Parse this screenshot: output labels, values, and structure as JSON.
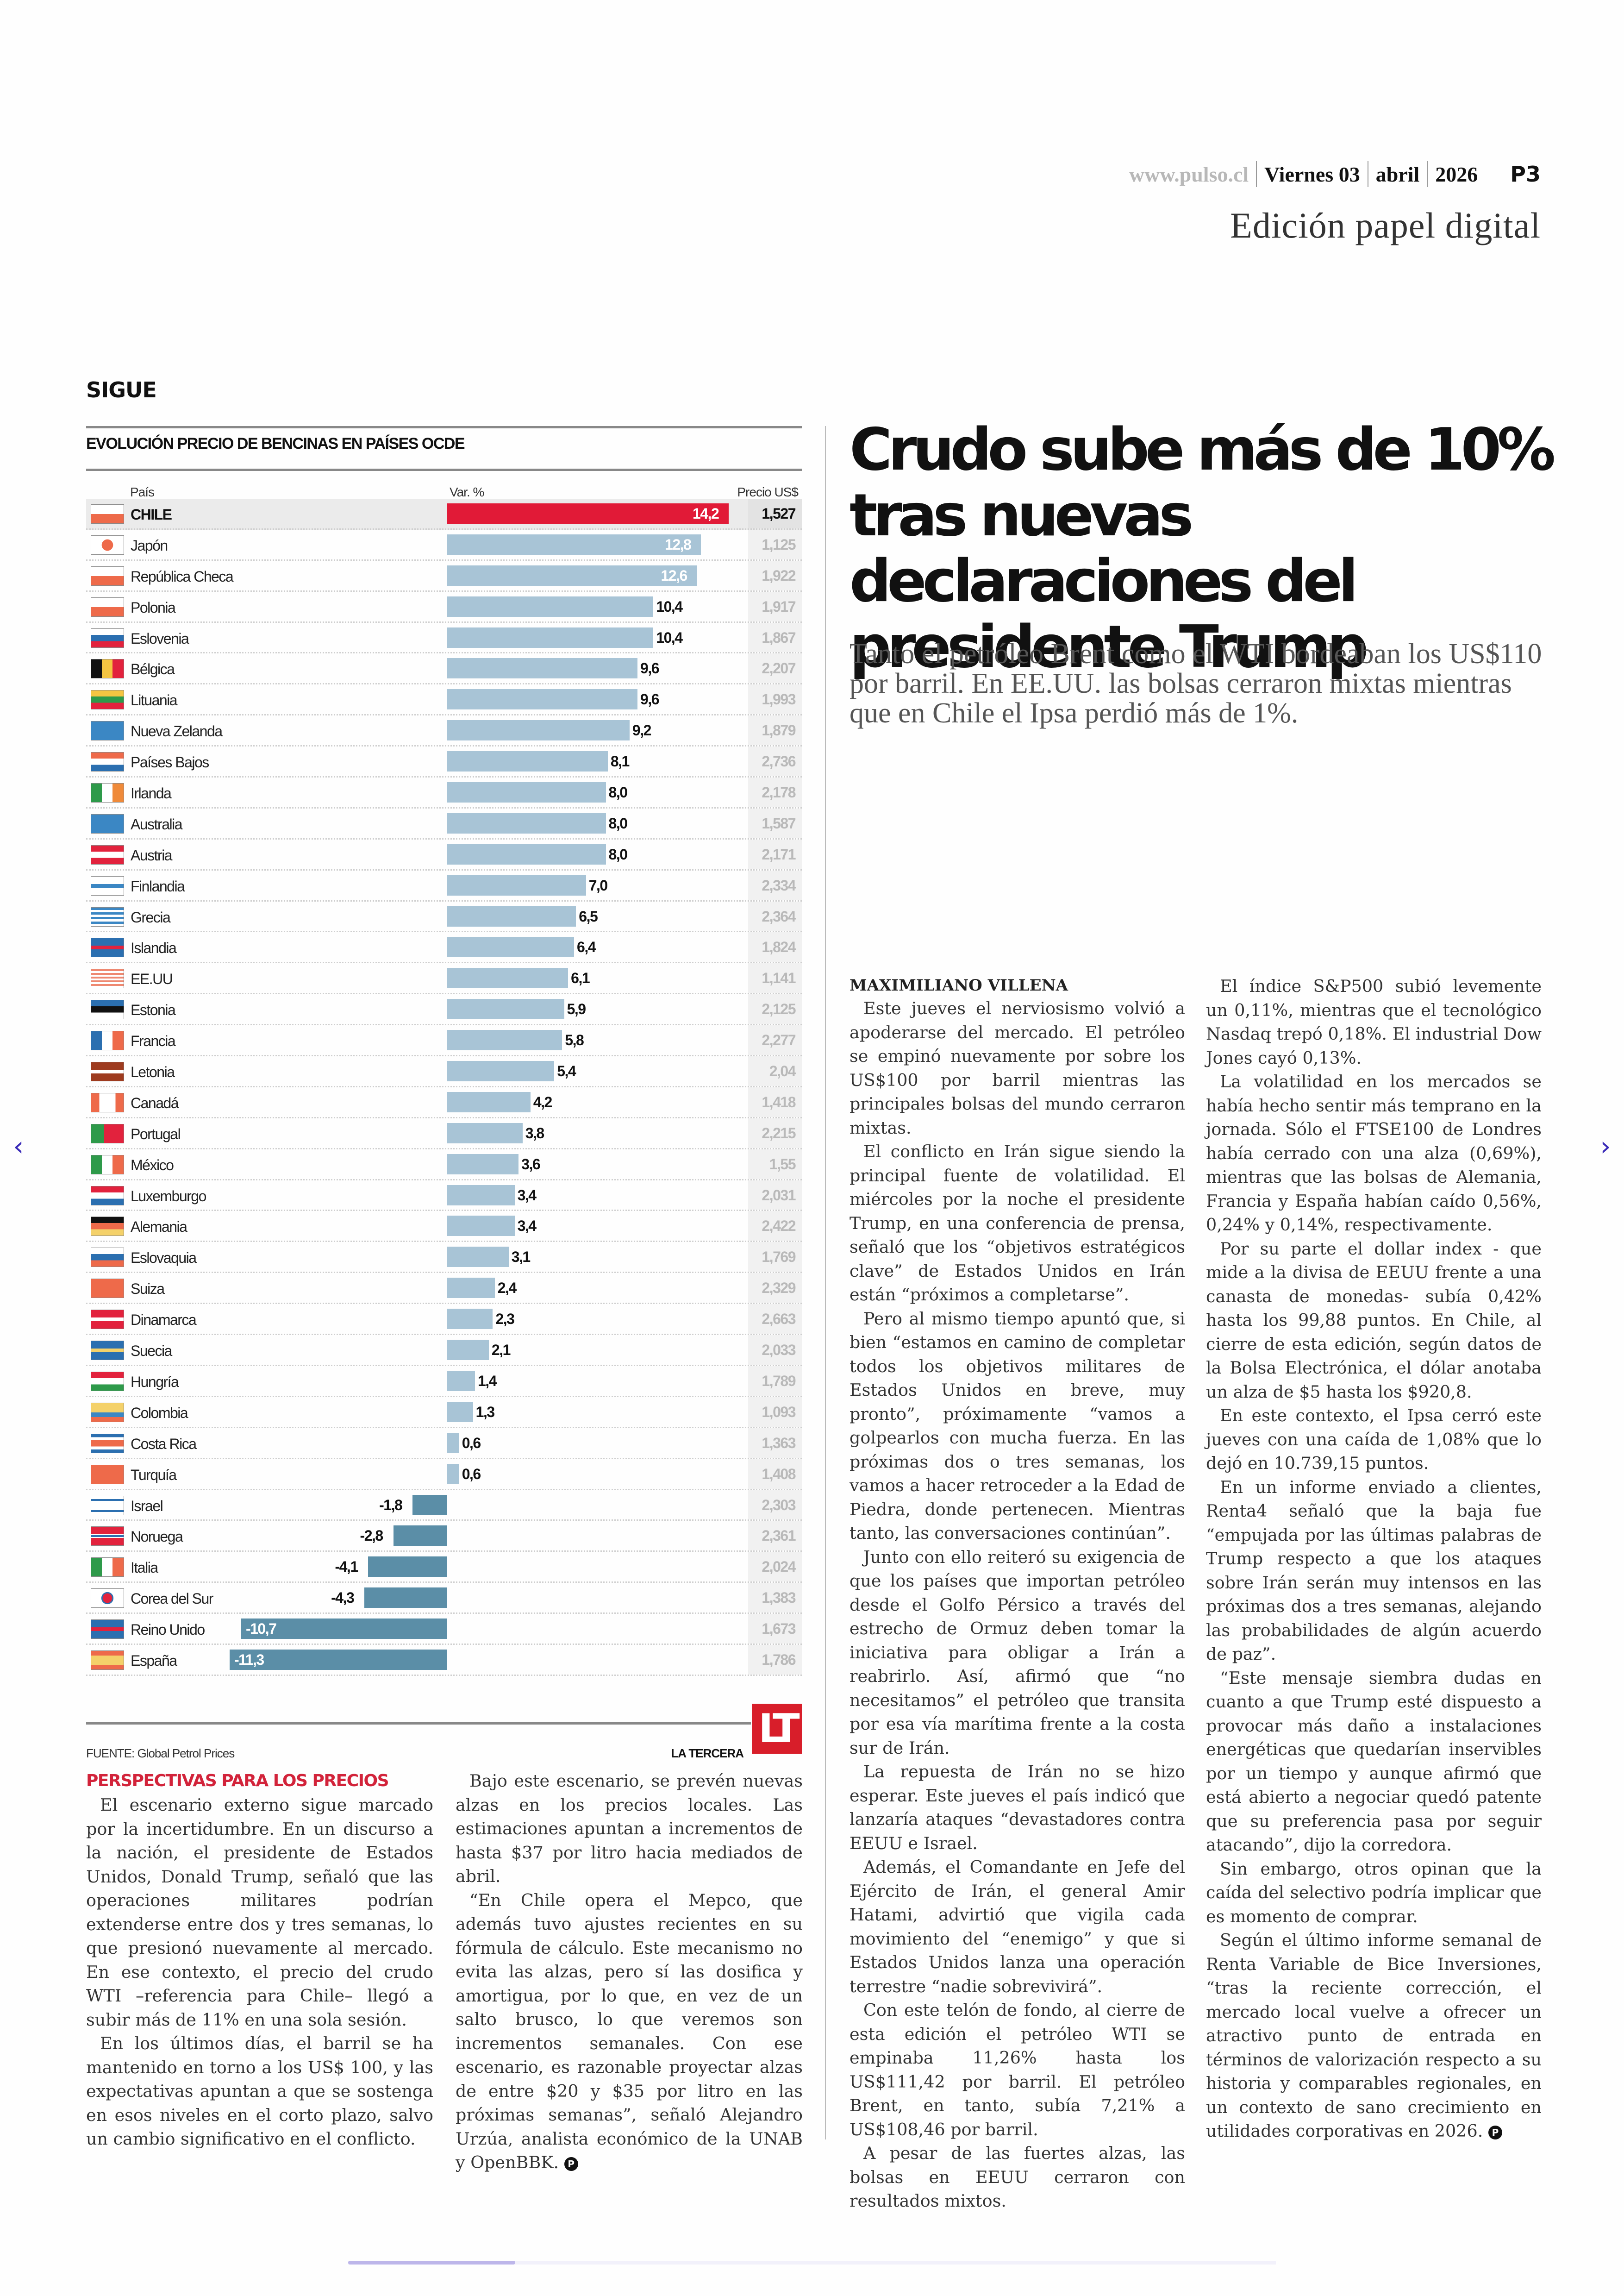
{
  "header": {
    "site": "www.pulso.cl",
    "day": "Viernes 03",
    "month": "abril",
    "year": "2026",
    "page": "P3",
    "edition": "Edición papel digital"
  },
  "section_label": "SIGUE",
  "chart_data": {
    "type": "bar",
    "title": "EVOLUCIÓN PRECIO DE BENCINAS EN PAÍSES OCDE",
    "column_headers": {
      "country": "País",
      "variation": "Var. %",
      "price": "Precio US$"
    },
    "xlabel": "Var. %",
    "highlight": "CHILE",
    "colors": {
      "highlight": "#e11a37",
      "positive": "#a8c4d6",
      "negative": "#5b8ea7",
      "price_text": "#b9b9b9"
    },
    "xlim": [
      -11.3,
      14.2
    ],
    "rows": [
      {
        "country": "CHILE",
        "flag": "cl",
        "var": 14.2,
        "var_label": "14,2",
        "price": "1,527"
      },
      {
        "country": "Japón",
        "flag": "jp",
        "var": 12.8,
        "var_label": "12,8",
        "price": "1,125"
      },
      {
        "country": "República Checa",
        "flag": "cz",
        "var": 12.6,
        "var_label": "12,6",
        "price": "1,922"
      },
      {
        "country": "Polonia",
        "flag": "pl",
        "var": 10.4,
        "var_label": "10,4",
        "price": "1,917"
      },
      {
        "country": "Eslovenia",
        "flag": "si",
        "var": 10.4,
        "var_label": "10,4",
        "price": "1,867"
      },
      {
        "country": "Bélgica",
        "flag": "be",
        "var": 9.6,
        "var_label": "9,6",
        "price": "2,207"
      },
      {
        "country": "Lituania",
        "flag": "lt",
        "var": 9.6,
        "var_label": "9,6",
        "price": "1,993"
      },
      {
        "country": "Nueva Zelanda",
        "flag": "nz",
        "var": 9.2,
        "var_label": "9,2",
        "price": "1,879"
      },
      {
        "country": "Países Bajos",
        "flag": "nl",
        "var": 8.1,
        "var_label": "8,1",
        "price": "2,736"
      },
      {
        "country": "Irlanda",
        "flag": "ie",
        "var": 8.0,
        "var_label": "8,0",
        "price": "2,178"
      },
      {
        "country": "Australia",
        "flag": "au",
        "var": 8.0,
        "var_label": "8,0",
        "price": "1,587"
      },
      {
        "country": "Austria",
        "flag": "at",
        "var": 8.0,
        "var_label": "8,0",
        "price": "2,171"
      },
      {
        "country": "Finlandia",
        "flag": "fi",
        "var": 7.0,
        "var_label": "7,0",
        "price": "2,334"
      },
      {
        "country": "Grecia",
        "flag": "gr",
        "var": 6.5,
        "var_label": "6,5",
        "price": "2,364"
      },
      {
        "country": "Islandia",
        "flag": "is",
        "var": 6.4,
        "var_label": "6,4",
        "price": "1,824"
      },
      {
        "country": "EE.UU",
        "flag": "us",
        "var": 6.1,
        "var_label": "6,1",
        "price": "1,141"
      },
      {
        "country": "Estonia",
        "flag": "ee",
        "var": 5.9,
        "var_label": "5,9",
        "price": "2,125"
      },
      {
        "country": "Francia",
        "flag": "fr",
        "var": 5.8,
        "var_label": "5,8",
        "price": "2,277"
      },
      {
        "country": "Letonia",
        "flag": "lv",
        "var": 5.4,
        "var_label": "5,4",
        "price": "2,04"
      },
      {
        "country": "Canadá",
        "flag": "ca",
        "var": 4.2,
        "var_label": "4,2",
        "price": "1,418"
      },
      {
        "country": "Portugal",
        "flag": "pt",
        "var": 3.8,
        "var_label": "3,8",
        "price": "2,215"
      },
      {
        "country": "México",
        "flag": "mx",
        "var": 3.6,
        "var_label": "3,6",
        "price": "1,55"
      },
      {
        "country": "Luxemburgo",
        "flag": "lu",
        "var": 3.4,
        "var_label": "3,4",
        "price": "2,031"
      },
      {
        "country": "Alemania",
        "flag": "de",
        "var": 3.4,
        "var_label": "3,4",
        "price": "2,422"
      },
      {
        "country": "Eslovaquia",
        "flag": "sk",
        "var": 3.1,
        "var_label": "3,1",
        "price": "1,769"
      },
      {
        "country": "Suiza",
        "flag": "ch",
        "var": 2.4,
        "var_label": "2,4",
        "price": "2,329"
      },
      {
        "country": "Dinamarca",
        "flag": "dk",
        "var": 2.3,
        "var_label": "2,3",
        "price": "2,663"
      },
      {
        "country": "Suecia",
        "flag": "se",
        "var": 2.1,
        "var_label": "2,1",
        "price": "2,033"
      },
      {
        "country": "Hungría",
        "flag": "hu",
        "var": 1.4,
        "var_label": "1,4",
        "price": "1,789"
      },
      {
        "country": "Colombia",
        "flag": "co",
        "var": 1.3,
        "var_label": "1,3",
        "price": "1,093"
      },
      {
        "country": "Costa Rica",
        "flag": "cr",
        "var": 0.6,
        "var_label": "0,6",
        "price": "1,363"
      },
      {
        "country": "Turquía",
        "flag": "tr",
        "var": 0.6,
        "var_label": "0,6",
        "price": "1,408"
      },
      {
        "country": "Israel",
        "flag": "il",
        "var": -1.8,
        "var_label": "-1,8",
        "price": "2,303"
      },
      {
        "country": "Noruega",
        "flag": "no",
        "var": -2.8,
        "var_label": "-2,8",
        "price": "2,361"
      },
      {
        "country": "Italia",
        "flag": "it",
        "var": -4.1,
        "var_label": "-4,1",
        "price": "2,024"
      },
      {
        "country": "Corea del Sur",
        "flag": "kr",
        "var": -4.3,
        "var_label": "-4,3",
        "price": "1,383"
      },
      {
        "country": "Reino Unido",
        "flag": "gb",
        "var": -10.7,
        "var_label": "-10,7",
        "price": "1,673"
      },
      {
        "country": "España",
        "flag": "es",
        "var": -11.3,
        "var_label": "-11,3",
        "price": "1,786"
      }
    ],
    "source": "FUENTE: Global Petrol Prices",
    "credit": "LA TERCERA",
    "logo": "LT"
  },
  "sidebar_article": {
    "subhead": "PERSPECTIVAS PARA LOS PRECIOS",
    "col1": [
      "El escenario externo sigue marcado por la incertidumbre. En un discurso a la na­ción, el presidente de Estados Unidos, Do­nald Trump, señaló que las operaciones militares podrían extenderse entre dos y tres semanas, lo que presionó nuevamente al mercado. En ese contexto, el precio del crudo WTI –referencia para Chile– llegó a subir más de 11% en una sola sesión.",
      "En los últimos días, el barril se ha man­tenido en torno a los US$ 100, y las expec­tativas apuntan a que se sostenga en esos niveles en el corto plazo, salvo un cambio significativo en el conflicto."
    ],
    "col2": [
      "Bajo este escenario, se prevén nuevas al­zas en los precios locales. Las estimacio­nes apuntan a incrementos de hasta $37 por litro hacia mediados de abril.",
      "“En Chile opera el Mepco, que además tuvo ajustes recientes en su fórmula de cálculo. Este mecanismo no evita las al­zas, pero sí las dosifica y amortigua, por lo que, en vez de un salto brusco, lo que veremos son incrementos semanales. Con ese escenario, es razonable proyec­tar alzas de entre $20 y $35 por litro en las próximas semanas”, señaló Alejandro Urzúa, analista económico de la UNAB y OpenBBK."
    ],
    "end_mark": "P"
  },
  "main_article": {
    "headline": "Crudo sube más de 10% tras nuevas declaraciones del presidente Trump",
    "deck": "Tanto el petróleo Brent como el WTI bordeaban los US$110 por barril. En EE.UU. las bolsas cerraron mixtas mientras que en Chile el Ipsa perdió más de 1%.",
    "byline": "MAXIMILIANO VILLENA",
    "col1": [
      "Este jueves el nerviosismo volvió a apo­derarse del mercado. El petróleo se empi­nó nuevamente por sobre los US$100 por barril mientras las principales bolsas del mundo cerraron mixtas.",
      "El conflicto en Irán sigue siendo la prin­cipal fuente de volatilidad. El miércoles por la noche el presidente Trump, en una conferencia de prensa, señaló que los “objetivos estratégicos clave” de Estados Unidos en Irán están “próximos a com­pletarse”.",
      "Pero al mismo tiempo apuntó que, si bien “estamos en camino de completar todos los objetivos militares de Estados Unidos en breve, muy pronto”, próxi­mamente “vamos a golpearlos con mu­cha fuerza. En las próximas dos o tres semanas, los vamos a hacer retroceder a la Edad de Piedra, donde pertenecen. Mientras tanto, las conversaciones con­tinúan”.",
      "Junto con ello reiteró su exigencia de que los países que importan petróleo desde el Golfo Pérsico a través del estre­cho de Ormuz deben tomar la iniciativa para obligar a Irán a reabrirlo. Así, afir­mó que “no necesitamos” el petróleo que transita por esa vía marítima frente a la costa sur de Irán.",
      "La repuesta de Irán no se hizo esperar. Este jueves el país indicó que lanzaría ataques “devastadores contra EEUU e Is­rael.",
      "Además, el Comandante en Jefe del Ejército de Irán, el general Amir Hatami, advirtió que vigila cada movimiento del “enemigo” y que si Estados Unidos lanza una operación terrestre “nadie sobrevivi­rá”.",
      "Con este telón de fondo, al cierre de esta edición el petróleo WTI se empina­ba 11,26% hasta los US$111,42 por barril. El petróleo Brent, en tanto, subía 7,21% a US$108,46 por barril.",
      "A pesar de las fuertes alzas, las bolsas en EEUU cerraron con resultados mixtos."
    ],
    "col2": [
      "El índice S&P500 subió levemente un 0,11%, mientras que el tecnológico Nas­daq trepó 0,18%. El industrial Dow Jones cayó 0,13%.",
      "La volatilidad en los mercados se había hecho sentir más temprano en la jorna­da. Sólo el FTSE100 de Londres había ce­rrado con una alza (0,69%), mientras que las bolsas de Alemania, Francia y España habían caído 0,56%, 0,24% y 0,14%, res­pectivamente.",
      "Por su parte el dollar index - que mide a la divisa de EEUU frente a una canasta de monedas- subía 0,42% hasta los 99,88 puntos. En Chile, al cierre de esta edi­ción, según datos de la Bolsa Electrónica, el dólar anotaba un alza de $5 hasta los $920,8.",
      "En este contexto, el Ipsa cerró este jue­ves con una caída de 1,08% que lo dejó en 10.739,15 puntos.",
      "En un informe enviado a clientes, Ren­ta4 señaló que la baja fue “empujada por las últimas palabras de Trump respecto a que los ataques sobre Irán serán muy intensos en las próximas dos a tres sema­nas, alejando las probabilidades de algún acuerdo de paz”.",
      "“Este mensaje siembra dudas en cuan­to a que Trump esté dispuesto a provo­car más daño a instalaciones energéticas que quedarían inservibles por un tiempo y aunque afirmó que está abierto a ne­gociar quedó patente que su preferencia pasa por seguir atacando”, dijo la corre­dora.",
      "Sin embargo, otros opinan que la caída del selectivo podría implicar que es mo­mento de comprar.",
      "Según el último informe semanal de Renta Variable de Bice Inversiones, “tras la reciente corrección, el mercado local vuelve a ofrecer un atractivo punto de entrada en términos de valorización respecto a su historia y comparables regionales, en un contexto de sano cre­cimiento en utilidades corporativas en 2026."
    ],
    "end_mark": "P"
  },
  "viewer": {
    "prev_icon": "chevron-left-icon",
    "next_icon": "chevron-right-icon",
    "prev_glyph": "‹",
    "next_glyph": "›",
    "page_progress": 0.18
  }
}
